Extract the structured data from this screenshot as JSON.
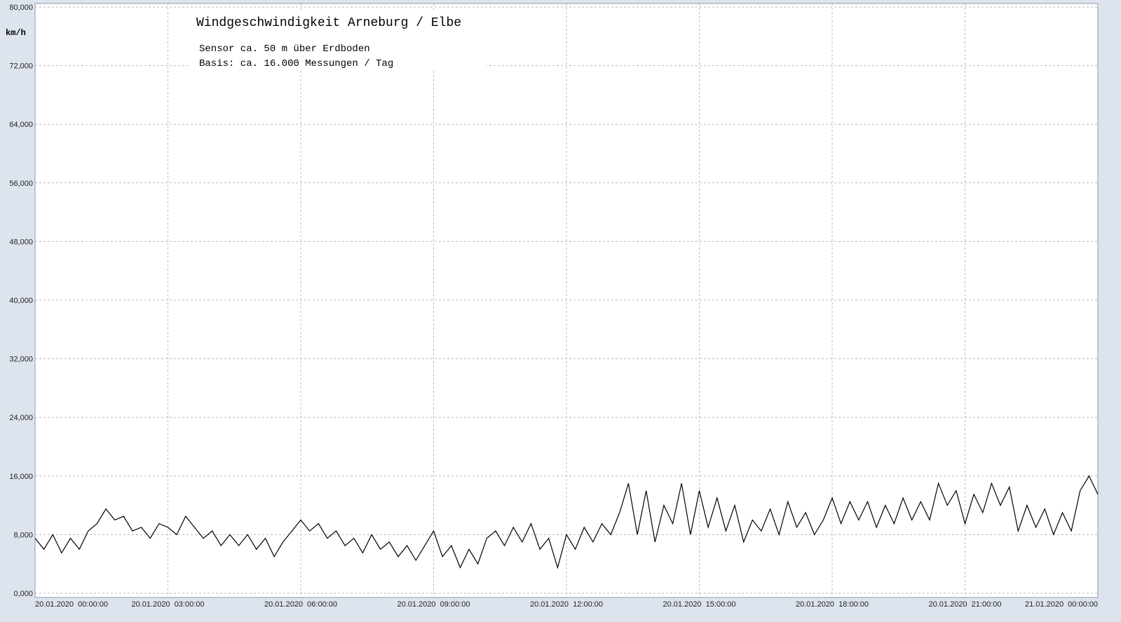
{
  "chart_data": {
    "type": "line",
    "title": "Windgeschwindigkeit  Arneburg / Elbe",
    "subtitle": [
      "Sensor ca. 50 m über Erdboden",
      "Basis: ca. 16.000 Messungen / Tag"
    ],
    "y_label": "km/h",
    "xlim": [
      0,
      24
    ],
    "xticks": [
      {
        "value": 0,
        "label": "20.01.2020  00:00:00"
      },
      {
        "value": 3,
        "label": "20.01.2020  03:00:00"
      },
      {
        "value": 6,
        "label": "20.01.2020  06:00:00"
      },
      {
        "value": 9,
        "label": "20.01.2020  09:00:00"
      },
      {
        "value": 12,
        "label": "20.01.2020  12:00:00"
      },
      {
        "value": 15,
        "label": "20.01.2020  15:00:00"
      },
      {
        "value": 18,
        "label": "20.01.2020  18:00:00"
      },
      {
        "value": 21,
        "label": "20.01.2020  21:00:00"
      },
      {
        "value": 24,
        "label": "21.01.2020  00:00:00"
      }
    ],
    "ylim": [
      0,
      80
    ],
    "yticks": [
      {
        "value": 0,
        "label": "0,000"
      },
      {
        "value": 8,
        "label": "8,000"
      },
      {
        "value": 16,
        "label": "16,000"
      },
      {
        "value": 24,
        "label": "24,000"
      },
      {
        "value": 32,
        "label": "32,000"
      },
      {
        "value": 40,
        "label": "40,000"
      },
      {
        "value": 48,
        "label": "48,000"
      },
      {
        "value": 56,
        "label": "56,000"
      },
      {
        "value": 64,
        "label": "64,000"
      },
      {
        "value": 72,
        "label": "72,000"
      },
      {
        "value": 80,
        "label": "80,000"
      }
    ],
    "grid": true,
    "x": [
      0,
      0.2,
      0.4,
      0.6,
      0.8,
      1.0,
      1.2,
      1.4,
      1.6,
      1.8,
      2.0,
      2.2,
      2.4,
      2.6,
      2.8,
      3.0,
      3.2,
      3.4,
      3.6,
      3.8,
      4.0,
      4.2,
      4.4,
      4.6,
      4.8,
      5.0,
      5.2,
      5.4,
      5.6,
      5.8,
      6.0,
      6.2,
      6.4,
      6.6,
      6.8,
      7.0,
      7.2,
      7.4,
      7.6,
      7.8,
      8.0,
      8.2,
      8.4,
      8.6,
      8.8,
      9.0,
      9.2,
      9.4,
      9.6,
      9.8,
      10.0,
      10.2,
      10.4,
      10.6,
      10.8,
      11.0,
      11.2,
      11.4,
      11.6,
      11.8,
      12.0,
      12.2,
      12.4,
      12.6,
      12.8,
      13.0,
      13.2,
      13.4,
      13.6,
      13.8,
      14.0,
      14.2,
      14.4,
      14.6,
      14.8,
      15.0,
      15.2,
      15.4,
      15.6,
      15.8,
      16.0,
      16.2,
      16.4,
      16.6,
      16.8,
      17.0,
      17.2,
      17.4,
      17.6,
      17.8,
      18.0,
      18.2,
      18.4,
      18.6,
      18.8,
      19.0,
      19.2,
      19.4,
      19.6,
      19.8,
      20.0,
      20.2,
      20.4,
      20.6,
      20.8,
      21.0,
      21.2,
      21.4,
      21.6,
      21.8,
      22.0,
      22.2,
      22.4,
      22.6,
      22.8,
      23.0,
      23.2,
      23.4,
      23.6,
      23.8,
      24.0
    ],
    "series": [
      {
        "color": "#000000",
        "values": [
          7.5,
          6,
          8,
          5.5,
          7.5,
          6,
          8.5,
          9.5,
          11.5,
          10,
          10.5,
          8.5,
          9,
          7.5,
          9.5,
          9,
          8,
          10.5,
          9,
          7.5,
          8.5,
          6.5,
          8,
          6.5,
          8,
          6,
          7.5,
          5,
          7,
          8.5,
          10,
          8.5,
          9.5,
          7.5,
          8.5,
          6.5,
          7.5,
          5.5,
          8,
          6,
          7,
          5,
          6.5,
          4.5,
          6.5,
          8.5,
          5,
          6.5,
          3.5,
          6,
          4,
          7.5,
          8.5,
          6.5,
          9,
          7,
          9.5,
          6,
          7.5,
          3.5,
          8,
          6,
          9,
          7,
          9.5,
          8,
          11,
          15,
          8,
          14,
          7,
          12,
          9.5,
          15,
          8,
          14,
          9,
          13,
          8.5,
          12,
          7,
          10,
          8.5,
          11.5,
          8,
          12.5,
          9,
          11,
          8,
          10,
          13,
          9.5,
          12.5,
          10,
          12.5,
          9,
          12,
          9.5,
          13,
          10,
          12.5,
          10,
          15,
          12,
          14,
          9.5,
          13.5,
          11,
          15,
          12,
          14.5,
          8.5,
          12,
          9,
          11.5,
          8,
          11,
          8.5,
          14,
          16,
          13.5
        ]
      }
    ]
  }
}
